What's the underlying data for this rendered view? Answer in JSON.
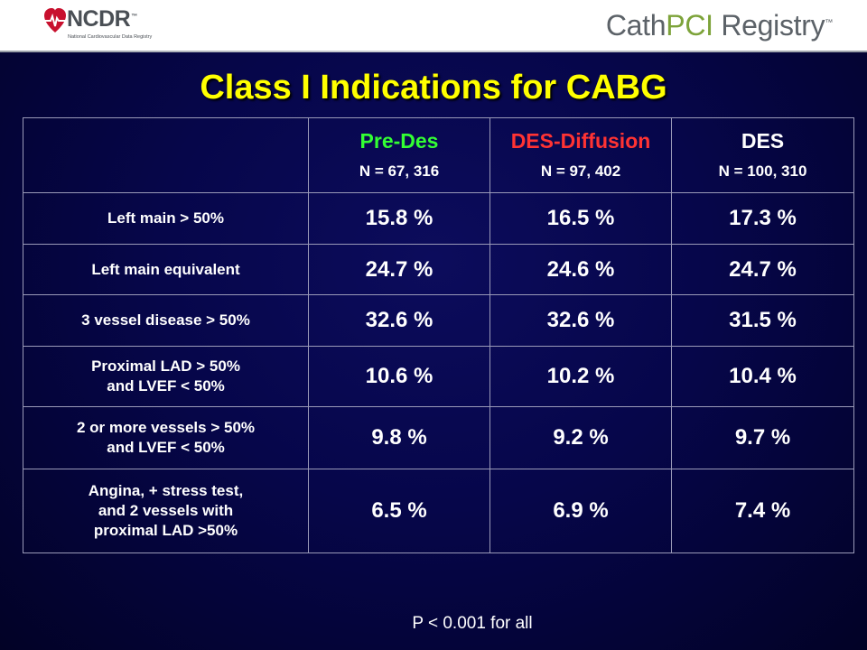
{
  "header": {
    "ncdr_logo_text": "NCDR",
    "ncdr_tm": "™",
    "ncdr_subtitle": "National Cardiovascular Data Registry",
    "cathpci_part1": "Cath",
    "cathpci_part2": "PCI",
    "cathpci_part3": " Registry",
    "cathpci_tm": "™"
  },
  "title": "Class I Indications for CABG",
  "table": {
    "groups": [
      {
        "name": "Pre-Des",
        "n": "N = 67, 316",
        "color": "#33ff33"
      },
      {
        "name": "DES-Diffusion",
        "n": "N = 97, 402",
        "color": "#ff3333"
      },
      {
        "name": "DES",
        "n": "N = 100, 310",
        "color": "#ffffff"
      }
    ],
    "rows": [
      {
        "label": "Left main > 50%",
        "values": [
          "15.8 %",
          "16.5 %",
          "17.3 %"
        ]
      },
      {
        "label": "Left main equivalent",
        "values": [
          "24.7 %",
          "24.6 %",
          "24.7 %"
        ]
      },
      {
        "label": "3 vessel disease > 50%",
        "values": [
          "32.6 %",
          "32.6 %",
          "31.5 %"
        ]
      },
      {
        "label": "Proximal LAD > 50%\nand LVEF < 50%",
        "values": [
          "10.6 %",
          "10.2 %",
          "10.4 %"
        ]
      },
      {
        "label": "2 or more vessels > 50%\nand LVEF < 50%",
        "values": [
          "9.8 %",
          "9.2 %",
          "9.7 %"
        ]
      },
      {
        "label": "Angina, + stress test,\nand 2 vessels with\nproximal LAD >50%",
        "values": [
          "6.5 %",
          "6.9 %",
          "7.4 %"
        ]
      }
    ]
  },
  "footnote": "P < 0.001 for all",
  "colors": {
    "title": "#ffff00",
    "background": "#06064a",
    "pre_des": "#33ff33",
    "des_diffusion": "#ff3333",
    "des": "#ffffff"
  }
}
